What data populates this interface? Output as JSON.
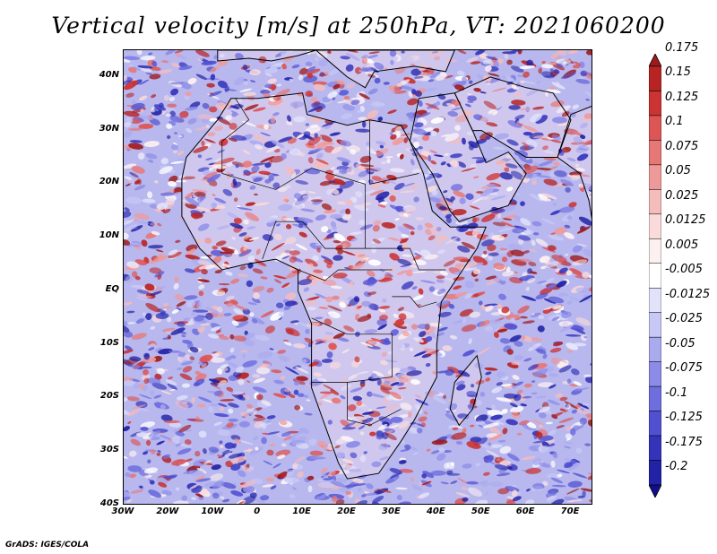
{
  "title": "Vertical velocity [m/s] at 250hPa, VT: 2021060200",
  "credit": "GrADS: IGES/COLA",
  "map": {
    "lon_range": [
      -30,
      75
    ],
    "lat_range": [
      -40,
      45
    ],
    "y_ticks": [
      {
        "value": 40,
        "label": "40N"
      },
      {
        "value": 30,
        "label": "30N"
      },
      {
        "value": 20,
        "label": "20N"
      },
      {
        "value": 10,
        "label": "10N"
      },
      {
        "value": 0,
        "label": "EQ"
      },
      {
        "value": -10,
        "label": "10S"
      },
      {
        "value": -20,
        "label": "20S"
      },
      {
        "value": -30,
        "label": "30S"
      },
      {
        "value": -40,
        "label": "40S"
      }
    ],
    "x_ticks": [
      {
        "value": -30,
        "label": "30W"
      },
      {
        "value": -20,
        "label": "20W"
      },
      {
        "value": -10,
        "label": "10W"
      },
      {
        "value": 0,
        "label": "0"
      },
      {
        "value": 10,
        "label": "10E"
      },
      {
        "value": 20,
        "label": "20E"
      },
      {
        "value": 30,
        "label": "30E"
      },
      {
        "value": 40,
        "label": "40E"
      },
      {
        "value": 50,
        "label": "50E"
      },
      {
        "value": 60,
        "label": "60E"
      },
      {
        "value": 70,
        "label": "70E"
      }
    ]
  },
  "colorbar": {
    "entries": [
      {
        "label": "0.175",
        "color": "#9e1a1a"
      },
      {
        "label": "0.15",
        "color": "#b82424"
      },
      {
        "label": "0.125",
        "color": "#cc3333"
      },
      {
        "label": "0.1",
        "color": "#dd5555"
      },
      {
        "label": "0.075",
        "color": "#e77777"
      },
      {
        "label": "0.05",
        "color": "#ef9a9a"
      },
      {
        "label": "0.025",
        "color": "#f5bcbc"
      },
      {
        "label": "0.0125",
        "color": "#fadada"
      },
      {
        "label": "0.005",
        "color": "#fdf0f0"
      },
      {
        "label": "-0.005",
        "color": "#ffffff"
      },
      {
        "label": "-0.0125",
        "color": "#e2e2fb"
      },
      {
        "label": "-0.025",
        "color": "#c8c8f6"
      },
      {
        "label": "-0.05",
        "color": "#aaaaef"
      },
      {
        "label": "-0.075",
        "color": "#8c8ce8"
      },
      {
        "label": "-0.1",
        "color": "#6e6ede"
      },
      {
        "label": "-0.125",
        "color": "#5050d0"
      },
      {
        "label": "-0.175",
        "color": "#3434bb"
      },
      {
        "label": "-0.2",
        "color": "#2222a6"
      },
      {
        "label": "",
        "color": "#10108a"
      }
    ]
  },
  "colors": {
    "ocean_base": "#b8b8ef",
    "land_base": "#e4d4ec",
    "positive": "#d84a4a",
    "negative": "#5a5ad8",
    "coastline": "#000000"
  }
}
